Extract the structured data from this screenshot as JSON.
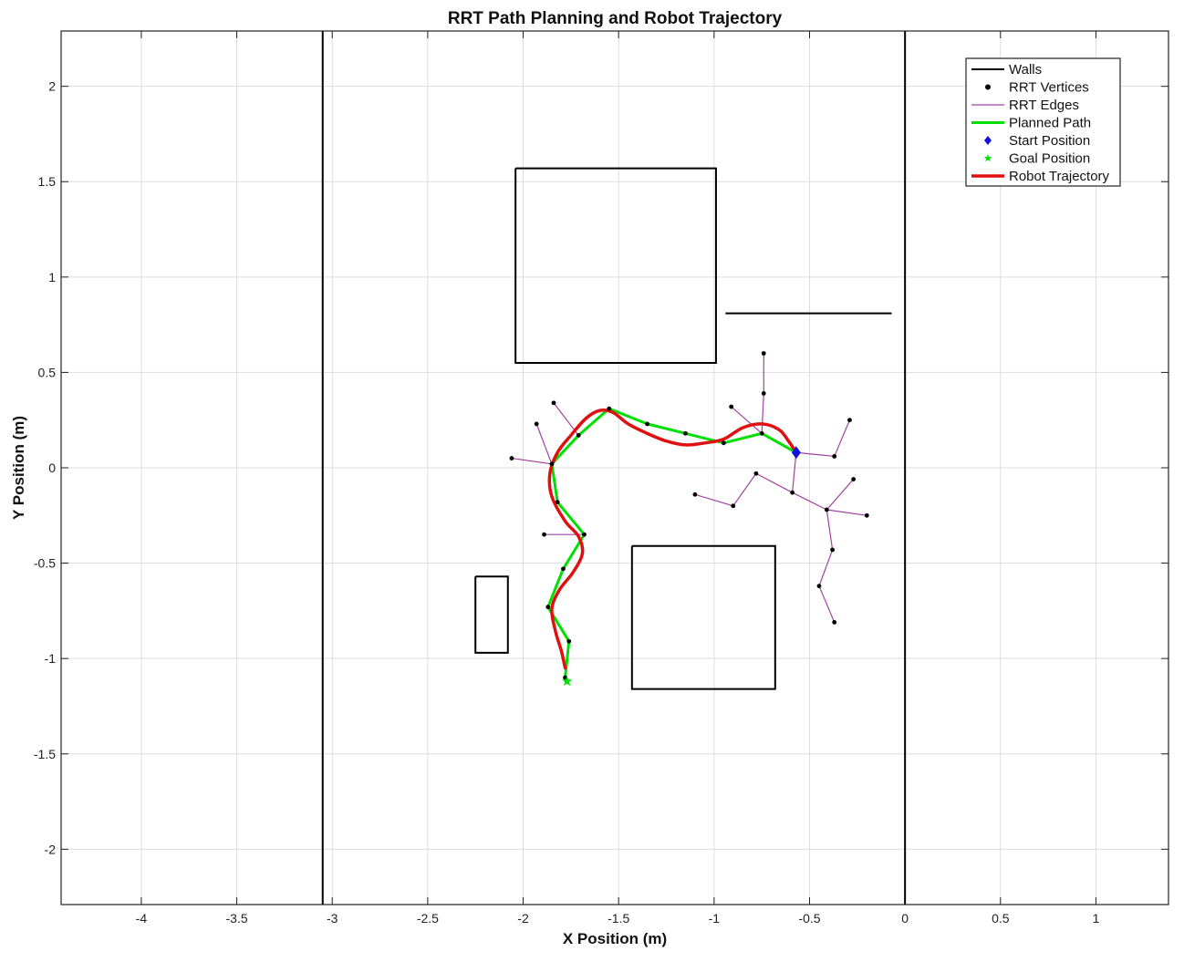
{
  "chart_data": {
    "type": "line",
    "title": "RRT Path Planning and Robot Trajectory",
    "xlabel": "X Position (m)",
    "ylabel": "Y Position (m)",
    "xlim": [
      -4.42,
      1.38
    ],
    "ylim": [
      -2.29,
      2.29
    ],
    "xticks": [
      -4,
      -3.5,
      -3,
      -2.5,
      -2,
      -1.5,
      -1,
      -0.5,
      0,
      0.5,
      1
    ],
    "xtick_labels": [
      "-4",
      "-3.5",
      "-3",
      "-2.5",
      "-2",
      "-1.5",
      "-1",
      "-0.5",
      "0",
      "0.5",
      "1"
    ],
    "yticks": [
      2,
      1.5,
      1,
      0.5,
      0,
      -0.5,
      -1,
      -1.5,
      -2
    ],
    "ytick_labels": [
      "2",
      "1.5",
      "1",
      "0.5",
      "0",
      "-0.5",
      "-1",
      "-1.5",
      "-2"
    ],
    "grid": true,
    "legend_position": "top-right",
    "legend": [
      {
        "label": "Walls",
        "key": "walls"
      },
      {
        "label": "RRT Vertices",
        "key": "vertices"
      },
      {
        "label": "RRT Edges",
        "key": "edges"
      },
      {
        "label": "Planned Path",
        "key": "path"
      },
      {
        "label": "Start Position",
        "key": "start"
      },
      {
        "label": "Goal Position",
        "key": "goal"
      },
      {
        "label": "Robot Trajectory",
        "key": "trajectory"
      }
    ],
    "colors": {
      "walls": "#000000",
      "vertices": "#000000",
      "edges": "#a040a0",
      "path": "#00e000",
      "start": "#1010e0",
      "goal": "#00e000",
      "trajectory": "#e01010",
      "grid": "#dddddd"
    },
    "walls": [
      [
        [
          -3.05,
          2.29
        ],
        [
          -3.05,
          -2.29
        ]
      ],
      [
        [
          0,
          2.29
        ],
        [
          0,
          -2.29
        ]
      ],
      [
        [
          -2.04,
          1.57
        ],
        [
          -0.99,
          1.57
        ],
        [
          -0.99,
          0.55
        ],
        [
          -2.04,
          0.55
        ],
        [
          -2.04,
          1.57
        ]
      ],
      [
        [
          -0.94,
          0.81
        ],
        [
          -0.07,
          0.81
        ]
      ],
      [
        [
          -1.43,
          -0.41
        ],
        [
          -0.68,
          -0.41
        ],
        [
          -0.68,
          -1.16
        ],
        [
          -1.43,
          -1.16
        ],
        [
          -1.43,
          -0.41
        ]
      ],
      [
        [
          -2.25,
          -0.57
        ],
        [
          -2.08,
          -0.57
        ],
        [
          -2.08,
          -0.97
        ],
        [
          -2.25,
          -0.97
        ],
        [
          -2.25,
          -0.57
        ]
      ]
    ],
    "rrt_vertices": [
      [
        -0.57,
        0.08
      ],
      [
        -0.75,
        0.18
      ],
      [
        -0.95,
        0.13
      ],
      [
        -1.15,
        0.18
      ],
      [
        -1.35,
        0.23
      ],
      [
        -1.55,
        0.31
      ],
      [
        -1.71,
        0.17
      ],
      [
        -1.85,
        0.02
      ],
      [
        -1.82,
        -0.18
      ],
      [
        -1.68,
        -0.35
      ],
      [
        -1.79,
        -0.53
      ],
      [
        -1.87,
        -0.73
      ],
      [
        -1.76,
        -0.91
      ],
      [
        -1.78,
        -1.1
      ],
      [
        -1.93,
        0.23
      ],
      [
        -2.06,
        0.05
      ],
      [
        -1.84,
        0.34
      ],
      [
        -1.89,
        -0.35
      ],
      [
        -0.91,
        0.32
      ],
      [
        -0.74,
        0.39
      ],
      [
        -0.74,
        0.6
      ],
      [
        -0.37,
        0.06
      ],
      [
        -0.29,
        0.25
      ],
      [
        -0.59,
        -0.13
      ],
      [
        -0.78,
        -0.03
      ],
      [
        -0.9,
        -0.2
      ],
      [
        -1.1,
        -0.14
      ],
      [
        -0.41,
        -0.22
      ],
      [
        -0.27,
        -0.06
      ],
      [
        -0.2,
        -0.25
      ],
      [
        -0.38,
        -0.43
      ],
      [
        -0.45,
        -0.62
      ],
      [
        -0.37,
        -0.81
      ]
    ],
    "rrt_edges": [
      [
        [
          -0.57,
          0.08
        ],
        [
          -0.75,
          0.18
        ]
      ],
      [
        [
          -0.75,
          0.18
        ],
        [
          -0.95,
          0.13
        ]
      ],
      [
        [
          -0.95,
          0.13
        ],
        [
          -1.15,
          0.18
        ]
      ],
      [
        [
          -1.15,
          0.18
        ],
        [
          -1.35,
          0.23
        ]
      ],
      [
        [
          -1.35,
          0.23
        ],
        [
          -1.55,
          0.31
        ]
      ],
      [
        [
          -1.55,
          0.31
        ],
        [
          -1.71,
          0.17
        ]
      ],
      [
        [
          -1.71,
          0.17
        ],
        [
          -1.85,
          0.02
        ]
      ],
      [
        [
          -1.85,
          0.02
        ],
        [
          -1.82,
          -0.18
        ]
      ],
      [
        [
          -1.82,
          -0.18
        ],
        [
          -1.68,
          -0.35
        ]
      ],
      [
        [
          -1.68,
          -0.35
        ],
        [
          -1.79,
          -0.53
        ]
      ],
      [
        [
          -1.79,
          -0.53
        ],
        [
          -1.87,
          -0.73
        ]
      ],
      [
        [
          -1.87,
          -0.73
        ],
        [
          -1.76,
          -0.91
        ]
      ],
      [
        [
          -1.76,
          -0.91
        ],
        [
          -1.78,
          -1.1
        ]
      ],
      [
        [
          -1.85,
          0.02
        ],
        [
          -1.93,
          0.23
        ]
      ],
      [
        [
          -1.85,
          0.02
        ],
        [
          -2.06,
          0.05
        ]
      ],
      [
        [
          -1.71,
          0.17
        ],
        [
          -1.84,
          0.34
        ]
      ],
      [
        [
          -1.68,
          -0.35
        ],
        [
          -1.89,
          -0.35
        ]
      ],
      [
        [
          -0.75,
          0.18
        ],
        [
          -0.91,
          0.32
        ]
      ],
      [
        [
          -0.75,
          0.18
        ],
        [
          -0.74,
          0.39
        ]
      ],
      [
        [
          -0.74,
          0.39
        ],
        [
          -0.74,
          0.6
        ]
      ],
      [
        [
          -0.57,
          0.08
        ],
        [
          -0.37,
          0.06
        ]
      ],
      [
        [
          -0.37,
          0.06
        ],
        [
          -0.29,
          0.25
        ]
      ],
      [
        [
          -0.57,
          0.08
        ],
        [
          -0.59,
          -0.13
        ]
      ],
      [
        [
          -0.59,
          -0.13
        ],
        [
          -0.78,
          -0.03
        ]
      ],
      [
        [
          -0.78,
          -0.03
        ],
        [
          -0.9,
          -0.2
        ]
      ],
      [
        [
          -0.9,
          -0.2
        ],
        [
          -1.1,
          -0.14
        ]
      ],
      [
        [
          -0.59,
          -0.13
        ],
        [
          -0.41,
          -0.22
        ]
      ],
      [
        [
          -0.41,
          -0.22
        ],
        [
          -0.27,
          -0.06
        ]
      ],
      [
        [
          -0.41,
          -0.22
        ],
        [
          -0.2,
          -0.25
        ]
      ],
      [
        [
          -0.41,
          -0.22
        ],
        [
          -0.38,
          -0.43
        ]
      ],
      [
        [
          -0.38,
          -0.43
        ],
        [
          -0.45,
          -0.62
        ]
      ],
      [
        [
          -0.45,
          -0.62
        ],
        [
          -0.37,
          -0.81
        ]
      ]
    ],
    "planned_path": [
      [
        -0.57,
        0.08
      ],
      [
        -0.75,
        0.18
      ],
      [
        -0.95,
        0.13
      ],
      [
        -1.15,
        0.18
      ],
      [
        -1.35,
        0.23
      ],
      [
        -1.55,
        0.31
      ],
      [
        -1.71,
        0.17
      ],
      [
        -1.85,
        0.02
      ],
      [
        -1.82,
        -0.18
      ],
      [
        -1.68,
        -0.35
      ],
      [
        -1.79,
        -0.53
      ],
      [
        -1.87,
        -0.73
      ],
      [
        -1.76,
        -0.91
      ],
      [
        -1.78,
        -1.1
      ]
    ],
    "start_position": [
      -0.57,
      0.08
    ],
    "goal_position": [
      -1.77,
      -1.12
    ],
    "robot_trajectory": [
      [
        -0.57,
        0.08
      ],
      [
        -0.61,
        0.14
      ],
      [
        -0.66,
        0.2
      ],
      [
        -0.75,
        0.23
      ],
      [
        -0.85,
        0.21
      ],
      [
        -0.95,
        0.15
      ],
      [
        -1.05,
        0.13
      ],
      [
        -1.15,
        0.12
      ],
      [
        -1.25,
        0.14
      ],
      [
        -1.35,
        0.18
      ],
      [
        -1.45,
        0.23
      ],
      [
        -1.53,
        0.29
      ],
      [
        -1.6,
        0.3
      ],
      [
        -1.67,
        0.26
      ],
      [
        -1.75,
        0.17
      ],
      [
        -1.82,
        0.08
      ],
      [
        -1.86,
        -0.03
      ],
      [
        -1.85,
        -0.15
      ],
      [
        -1.78,
        -0.28
      ],
      [
        -1.71,
        -0.36
      ],
      [
        -1.69,
        -0.45
      ],
      [
        -1.74,
        -0.55
      ],
      [
        -1.81,
        -0.64
      ],
      [
        -1.85,
        -0.74
      ],
      [
        -1.83,
        -0.86
      ],
      [
        -1.8,
        -0.96
      ],
      [
        -1.78,
        -1.05
      ]
    ]
  }
}
